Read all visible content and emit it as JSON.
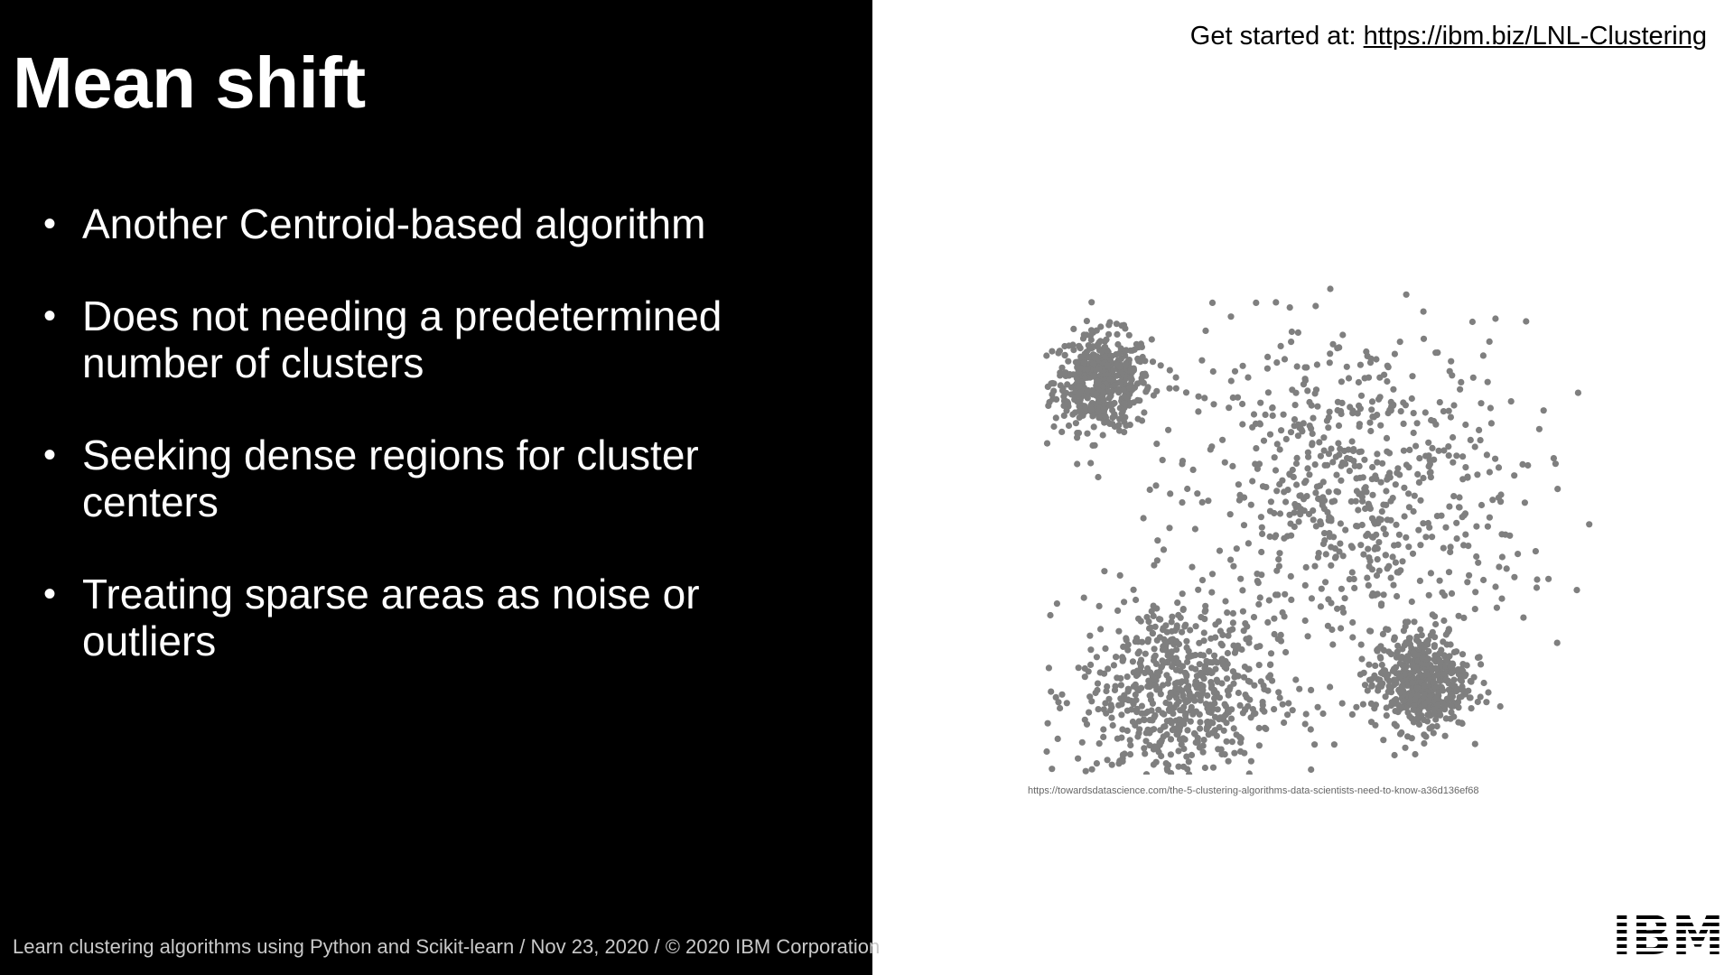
{
  "slide": {
    "title": "Mean shift",
    "bullets": [
      {
        "line1": "Another Centroid-based algorithm",
        "line2": ""
      },
      {
        "line1": "Does not needing a predetermined",
        "line2": "number of clusters"
      },
      {
        "line1": "Seeking dense regions for cluster",
        "line2": "centers"
      },
      {
        "line1": "Treating sparse areas as noise or",
        "line2": "outliers"
      }
    ],
    "footer": "Learn clustering algorithms using Python and Scikit-learn / Nov 23, 2020 / © 2020 IBM Corporation"
  },
  "header": {
    "prefix": "Get started at: ",
    "link_text": "https://ibm.biz/LNL-Clustering"
  },
  "figure": {
    "source_url": "https://towardsdatascience.com/the-5-clustering-algorithms-data-scientists-need-to-know-a36d136ef68",
    "point_color": "#7f7f7f"
  },
  "logo": {
    "text": "IBM"
  },
  "chart_data": {
    "type": "scatter",
    "title": "",
    "xlabel": "",
    "ylabel": "",
    "grid": false,
    "clusters": [
      {
        "center": [
          0.11,
          0.68
        ],
        "spread": 0.042,
        "points": 500
      },
      {
        "center": [
          0.54,
          0.48
        ],
        "spread": 0.15,
        "points": 700
      },
      {
        "center": [
          0.24,
          0.14
        ],
        "spread": 0.085,
        "points": 650
      },
      {
        "center": [
          0.66,
          0.16
        ],
        "spread": 0.042,
        "points": 500
      }
    ]
  }
}
